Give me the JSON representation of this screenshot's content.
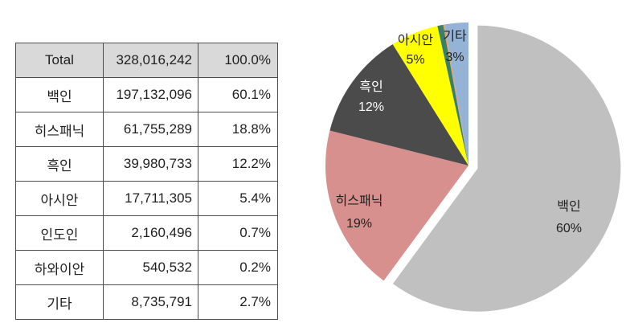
{
  "page": {
    "background": "#ffffff"
  },
  "table": {
    "header": {
      "label": "Total",
      "value": "328,016,242",
      "percent": "100.0%"
    },
    "rows": [
      {
        "label": "백인",
        "value": "197,132,096",
        "percent": "60.1%"
      },
      {
        "label": "히스패닉",
        "value": "61,755,289",
        "percent": "18.8%"
      },
      {
        "label": "흑인",
        "value": "39,980,733",
        "percent": "12.2%"
      },
      {
        "label": "아시안",
        "value": "17,711,305",
        "percent": "5.4%"
      },
      {
        "label": "인도인",
        "value": "2,160,496",
        "percent": "0.7%"
      },
      {
        "label": "하와이안",
        "value": "540,532",
        "percent": "0.2%"
      },
      {
        "label": "기타",
        "value": "8,735,791",
        "percent": "2.7%"
      }
    ],
    "header_bg": "#d9d9d9",
    "border_color": "#4d4d4d"
  },
  "chart_data": {
    "type": "pie",
    "title": "",
    "categories": [
      "백인",
      "히스패닉",
      "흑인",
      "아시안",
      "인도인",
      "하와이안",
      "기타"
    ],
    "ids": [
      "white",
      "hispanic",
      "black",
      "asian",
      "indian",
      "hawaiian",
      "other"
    ],
    "values": [
      197132096,
      61755289,
      39980733,
      17711305,
      2160496,
      540532,
      8735791
    ],
    "percent_labels": [
      "60%",
      "19%",
      "12%",
      "5%",
      "",
      "",
      "3%"
    ],
    "colors": [
      "#c0c0c0",
      "#d7908d",
      "#4b4b4b",
      "#ffff00",
      "#3a7f6d",
      "#e5a05e",
      "#95b3d7"
    ],
    "label_text_colors": [
      "#1f1f1f",
      "#1f1f1f",
      "#ffffff",
      "#1f1f1f",
      "",
      "",
      "#1f1f1f"
    ],
    "exploded_index": 0,
    "start_angle_deg": 0,
    "direction": "clockwise",
    "legend": "none"
  }
}
